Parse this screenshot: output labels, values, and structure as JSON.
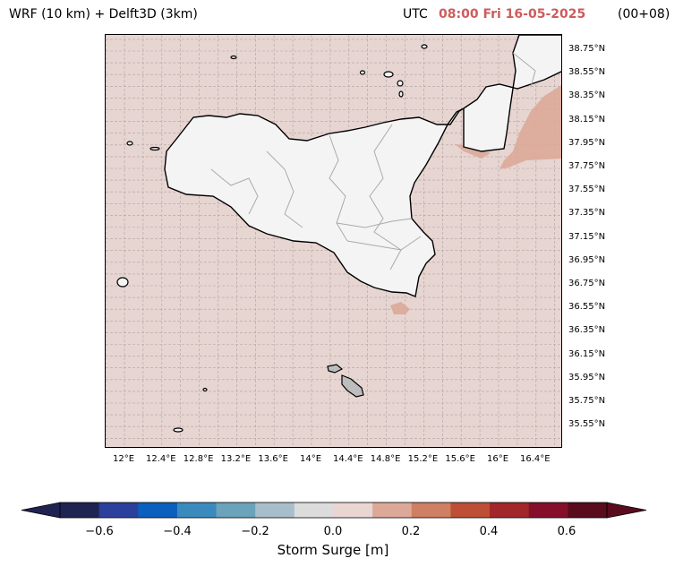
{
  "header": {
    "model_title": "WRF (10 km) + Delft3D (3km)",
    "utc_label": "UTC",
    "timestamp": "08:00 Fri 16-05-2025",
    "lead_time": "(00+08)"
  },
  "map": {
    "lat_labels": [
      "38.75°N",
      "38.55°N",
      "38.35°N",
      "38.15°N",
      "37.95°N",
      "37.75°N",
      "37.55°N",
      "37.35°N",
      "37.15°N",
      "36.95°N",
      "36.75°N",
      "36.55°N",
      "36.35°N",
      "36.15°N",
      "35.95°N",
      "35.75°N",
      "35.55°N"
    ],
    "lon_labels": [
      "12°E",
      "12.4°E",
      "12.8°E",
      "13.2°E",
      "13.6°E",
      "14°E",
      "14.4°E",
      "14.8°E",
      "15.2°E",
      "15.6°E",
      "16°E",
      "16.4°E"
    ],
    "colors": {
      "sea_background": "#e7d5d2",
      "land": "#f4f4f4",
      "positive_surge": "#dca998",
      "negative_surge": "#a8bfcb",
      "malta_land": "#bdbdbd"
    }
  },
  "colorbar": {
    "ticks": [
      "−0.6",
      "−0.4",
      "−0.2",
      "0.0",
      "0.2",
      "0.4",
      "0.6"
    ],
    "label": "Storm Surge [m]",
    "colors": [
      "#1f2352",
      "#2b3f9c",
      "#0b5fbd",
      "#3b8abd",
      "#6aa3ba",
      "#a8bfcb",
      "#dcdcdc",
      "#e9d5d1",
      "#dca998",
      "#cf7f62",
      "#bd4f36",
      "#a3262a",
      "#850f2b",
      "#5a0c1e"
    ]
  }
}
